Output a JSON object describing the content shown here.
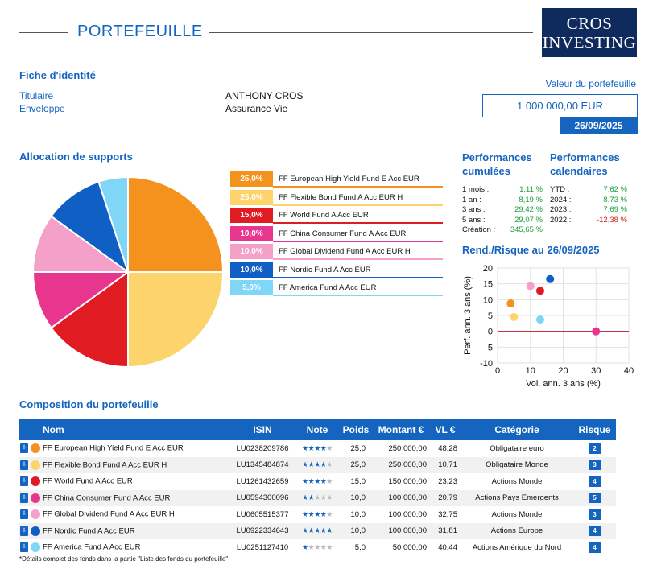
{
  "header": {
    "title": "PORTEFEUILLE",
    "logo_line1": "CROS",
    "logo_line2": "INVESTING"
  },
  "identity": {
    "section_title": "Fiche d'identité",
    "holder_label": "Titulaire",
    "holder_value": "ANTHONY CROS",
    "envelope_label": "Enveloppe",
    "envelope_value": "Assurance Vie"
  },
  "portfolio_value": {
    "label": "Valeur du portefeuille",
    "amount": "1 000 000,00 EUR",
    "date": "26/09/2025"
  },
  "allocation": {
    "section_title": "Allocation de supports",
    "items": [
      {
        "pct": "25,0%",
        "name": "FF European High Yield Fund E Acc EUR",
        "color": "#f5921e"
      },
      {
        "pct": "25,0%",
        "name": "FF Flexible Bond Fund A Acc EUR H",
        "color": "#fdd46c"
      },
      {
        "pct": "15,0%",
        "name": "FF World Fund A Acc EUR",
        "color": "#e01b22"
      },
      {
        "pct": "10,0%",
        "name": "FF China Consumer Fund A Acc EUR",
        "color": "#e8368f"
      },
      {
        "pct": "10,0%",
        "name": "FF Global Dividend Fund A Acc EUR H",
        "color": "#f4a0c8"
      },
      {
        "pct": "10,0%",
        "name": "FF Nordic Fund A Acc EUR",
        "color": "#0f5fc4"
      },
      {
        "pct": "5,0%",
        "name": "FF America Fund A Acc EUR",
        "color": "#7fd6f7"
      }
    ]
  },
  "chart_data": [
    {
      "type": "pie",
      "categories": [
        "FF European High Yield Fund E Acc EUR",
        "FF Flexible Bond Fund A Acc EUR H",
        "FF World Fund A Acc EUR",
        "FF China Consumer Fund A Acc EUR",
        "FF Global Dividend Fund A Acc EUR H",
        "FF Nordic Fund A Acc EUR",
        "FF America Fund A Acc EUR"
      ],
      "values": [
        25.0,
        25.0,
        15.0,
        10.0,
        10.0,
        10.0,
        5.0
      ],
      "colors": [
        "#f5921e",
        "#fdd46c",
        "#e01b22",
        "#e8368f",
        "#f4a0c8",
        "#0f5fc4",
        "#7fd6f7"
      ]
    },
    {
      "type": "scatter",
      "title": "Rend./Risque au 26/09/2025",
      "xlabel": "Vol. ann. 3 ans (%)",
      "ylabel": "Perf. ann. 3 ans (%)",
      "xlim": [
        0,
        40
      ],
      "ylim": [
        -10,
        20
      ],
      "xticks": [
        0,
        10,
        20,
        30,
        40
      ],
      "yticks": [
        -10,
        -5,
        0,
        5,
        10,
        15,
        20
      ],
      "grid": true,
      "points": [
        {
          "x": 4.0,
          "y": 8.8,
          "color": "#f5921e"
        },
        {
          "x": 5.0,
          "y": 4.5,
          "color": "#fdd46c"
        },
        {
          "x": 13.0,
          "y": 12.8,
          "color": "#e01b22"
        },
        {
          "x": 30.0,
          "y": 0.0,
          "color": "#e8368f"
        },
        {
          "x": 10.0,
          "y": 14.3,
          "color": "#f4a0c8"
        },
        {
          "x": 16.0,
          "y": 16.5,
          "color": "#0f5fc4"
        },
        {
          "x": 13.0,
          "y": 3.7,
          "color": "#7fd6f7"
        }
      ]
    }
  ],
  "performance": {
    "cumulative_title_1": "Performances",
    "cumulative_title_2": "cumulées",
    "calendar_title_1": "Performances",
    "calendar_title_2": "calendaires",
    "cumulative": [
      {
        "label": "1 mois :",
        "value": "1,11 %"
      },
      {
        "label": "1 an :",
        "value": "8,19 %"
      },
      {
        "label": "3 ans :",
        "value": "29,42 %"
      },
      {
        "label": "5 ans :",
        "value": "29,07 %"
      },
      {
        "label": "Création :",
        "value": "345,65 %"
      }
    ],
    "calendar": [
      {
        "label": "YTD :",
        "value": "7,62 %",
        "color": "#1a9e3a"
      },
      {
        "label": "2024 :",
        "value": "8,73 %",
        "color": "#1a9e3a"
      },
      {
        "label": "2023 :",
        "value": "7,69 %",
        "color": "#1a9e3a"
      },
      {
        "label": "2022 :",
        "value": "-12,38 %",
        "color": "#d32020"
      }
    ]
  },
  "composition": {
    "section_title": "Composition du portefeuille",
    "headers": [
      "Nom",
      "ISIN",
      "Note",
      "Poids",
      "Montant €",
      "VL €",
      "Catégorie",
      "Risque"
    ],
    "rows": [
      {
        "name": "FF European High Yield Fund E Acc EUR",
        "color": "#f5921e",
        "isin": "LU0238209786",
        "stars": 4,
        "weight": "25,0",
        "amount": "250 000,00",
        "nav": "48,28",
        "category": "Obligataire euro",
        "risk": "2"
      },
      {
        "name": "FF Flexible Bond Fund A Acc EUR H",
        "color": "#fdd46c",
        "isin": "LU1345484874",
        "stars": 4,
        "weight": "25,0",
        "amount": "250 000,00",
        "nav": "10,71",
        "category": "Obligataire Monde",
        "risk": "3"
      },
      {
        "name": "FF World Fund A Acc EUR",
        "color": "#e01b22",
        "isin": "LU1261432659",
        "stars": 4,
        "weight": "15,0",
        "amount": "150 000,00",
        "nav": "23,23",
        "category": "Actions Monde",
        "risk": "4"
      },
      {
        "name": "FF China Consumer Fund A Acc EUR",
        "color": "#e8368f",
        "isin": "LU0594300096",
        "stars": 2,
        "weight": "10,0",
        "amount": "100 000,00",
        "nav": "20,79",
        "category": "Actions Pays Emergents",
        "risk": "5"
      },
      {
        "name": "FF Global Dividend Fund A Acc EUR H",
        "color": "#f4a0c8",
        "isin": "LU0605515377",
        "stars": 4,
        "weight": "10,0",
        "amount": "100 000,00",
        "nav": "32,75",
        "category": "Actions Monde",
        "risk": "3"
      },
      {
        "name": "FF Nordic Fund A Acc EUR",
        "color": "#0f5fc4",
        "isin": "LU0922334643",
        "stars": 5,
        "weight": "10,0",
        "amount": "100 000,00",
        "nav": "31,81",
        "category": "Actions Europe",
        "risk": "4"
      },
      {
        "name": "FF America Fund A Acc EUR",
        "color": "#7fd6f7",
        "isin": "LU0251127410",
        "stars": 1,
        "weight": "5,0",
        "amount": "50 000,00",
        "nav": "40,44",
        "category": "Actions Amérique du Nord",
        "risk": "4"
      }
    ],
    "footnote": "*Détails complet des fonds dans la partie \"Liste des fonds du portefeuille\""
  }
}
